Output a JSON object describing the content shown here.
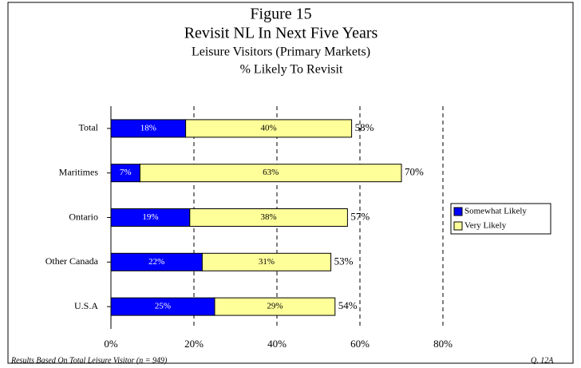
{
  "chart_data": {
    "type": "stacked-barh",
    "title": "Figure 15",
    "subtitle": "Revisit NL In Next Five Years",
    "subtitle2": "Leisure Visitors (Primary Markets)",
    "subtitle3": "% Likely To Revisit",
    "categories": [
      "Total",
      "Maritimes",
      "Ontario",
      "Other Canada",
      "U.S.A"
    ],
    "series": [
      {
        "name": "Somewhat Likely",
        "color": "#0000ff",
        "values": [
          18,
          7,
          19,
          22,
          25
        ],
        "value_labels": [
          "18%",
          "7%",
          "19%",
          "22%",
          "25%"
        ]
      },
      {
        "name": "Very Likely",
        "color": "#ffff99",
        "values": [
          40,
          63,
          38,
          31,
          29
        ],
        "value_labels": [
          "40%",
          "63%",
          "38%",
          "31%",
          "29%"
        ]
      }
    ],
    "totals": [
      58,
      70,
      57,
      53,
      54
    ],
    "total_labels": [
      "58%",
      "70%",
      "57%",
      "53%",
      "54%"
    ],
    "xlim": [
      0,
      80
    ],
    "xticks": [
      {
        "value": 0,
        "label": "0%"
      },
      {
        "value": 20,
        "label": "20%"
      },
      {
        "value": 40,
        "label": "40%"
      },
      {
        "value": 60,
        "label": "60%"
      },
      {
        "value": 80,
        "label": "80%"
      }
    ],
    "grid": true,
    "legend": "right",
    "footnote": "Results Based On Total Leisure Visitor (n = 949)",
    "question": "Q. 12A"
  }
}
